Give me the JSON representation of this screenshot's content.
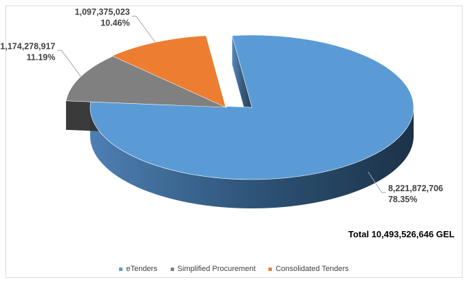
{
  "chart_data": {
    "type": "pie",
    "style": "3d-exploded",
    "total_label": "Total 10,493,526,646 GEL",
    "legend_position": "bottom",
    "series": [
      {
        "name": "eTenders",
        "value": 8221872706,
        "value_label": "8,221,872,706",
        "percent_label": "78.35%",
        "color": "#5b9bd5"
      },
      {
        "name": "Simplified Procurement",
        "value": 1174278917,
        "value_label": "1,174,278,917",
        "percent_label": "11.19%",
        "color": "#808080"
      },
      {
        "name": "Consolidated Tenders",
        "value": 1097375023,
        "value_label": "1,097,375,023",
        "percent_label": "10.46%",
        "color": "#ed7d31"
      }
    ]
  }
}
